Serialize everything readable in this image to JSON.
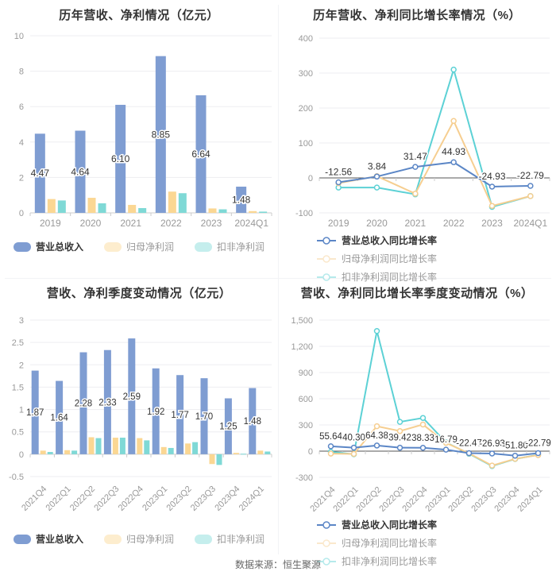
{
  "page": {
    "footer": "数据来源：恒生聚源"
  },
  "colors": {
    "bar_revenue": "#7F9DD2",
    "bar_net_profit": "#FBD793",
    "bar_non_gaap": "#7FD9D6",
    "line_revenue": "#5B86C6",
    "line_net_profit": "#F6CE90",
    "line_non_gaap": "#5CD1D5",
    "title_text": "#333333",
    "tick_text": "#999999",
    "grid": "#ededf1",
    "axis_light": "#cccccc",
    "axis_dark": "#555555",
    "footer_text": "#666666"
  },
  "chart_data": [
    {
      "type": "bar",
      "title": "历年营收、净利情况（亿元）",
      "categories": [
        "2019",
        "2020",
        "2021",
        "2022",
        "2023",
        "2024Q1"
      ],
      "ylim": [
        0,
        10
      ],
      "yticks": [
        0,
        2,
        4,
        6,
        8,
        10
      ],
      "ytick_labels": [
        "0",
        "2",
        "4",
        "6",
        "8",
        "10"
      ],
      "grid": true,
      "legend_position": "bottom-center",
      "series": [
        {
          "name": "营业总收入",
          "color": "#7F9DD2",
          "values": [
            4.47,
            4.64,
            6.1,
            8.85,
            6.64,
            1.48
          ],
          "labels": [
            "4.47",
            "4.64",
            "6.10",
            "8.85",
            "6.64",
            "1.48"
          ]
        },
        {
          "name": "归母净利润",
          "color": "#FBD793",
          "values": [
            0.78,
            0.85,
            0.45,
            1.2,
            0.25,
            0.1
          ]
        },
        {
          "name": "扣非净利润",
          "color": "#7FD9D6",
          "values": [
            0.7,
            0.54,
            0.27,
            1.11,
            0.2,
            0.07
          ]
        }
      ]
    },
    {
      "type": "line",
      "title": "历年营收、净利同比增长率情况（%）",
      "categories": [
        "2019",
        "2020",
        "2021",
        "2022",
        "2023",
        "2024Q1"
      ],
      "ylim": [
        -100,
        400
      ],
      "yticks": [
        -100,
        0,
        100,
        200,
        300,
        400
      ],
      "ytick_labels": [
        "-100",
        "0",
        "100",
        "200",
        "300",
        "400"
      ],
      "grid": true,
      "legend_position": "bottom-wrapped",
      "series": [
        {
          "name": "营业总收入同比增长率",
          "color": "#5B86C6",
          "values": [
            -12.56,
            3.84,
            31.47,
            44.93,
            -24.93,
            -22.79
          ],
          "labels": [
            "-12.56",
            "3.84",
            "31.47",
            "44.93",
            "-24.93",
            "-22.79"
          ]
        },
        {
          "name": "归母净利润同比增长率",
          "color": "#F6CE90",
          "values": [
            -15,
            5,
            -45,
            163,
            -80,
            -52
          ]
        },
        {
          "name": "扣非净利润同比增长率",
          "color": "#5CD1D5",
          "values": [
            -27.5,
            -27.5,
            -47,
            310,
            -83,
            -52
          ]
        }
      ]
    },
    {
      "type": "bar",
      "title": "营收、净利季度变动情况（亿元）",
      "categories": [
        "2021Q4",
        "2022Q1",
        "2022Q2",
        "2022Q3",
        "2022Q4",
        "2023Q1",
        "2023Q2",
        "2023Q3",
        "2023Q4",
        "2024Q1"
      ],
      "ylim": [
        -0.5,
        3
      ],
      "yticks": [
        -0.5,
        0,
        0.5,
        1,
        1.5,
        2,
        2.5,
        3
      ],
      "ytick_labels": [
        "-0.5",
        "0",
        "0.5",
        "1",
        "1.5",
        "2",
        "2.5",
        "3"
      ],
      "grid": true,
      "legend_position": "bottom-center",
      "x_label_rotation": -45,
      "series": [
        {
          "name": "营业总收入",
          "color": "#7F9DD2",
          "values": [
            1.87,
            1.64,
            2.28,
            2.33,
            2.59,
            1.92,
            1.77,
            1.7,
            1.25,
            1.48
          ],
          "labels": [
            "1.87",
            "1.64",
            "2.28",
            "2.33",
            "2.59",
            "1.92",
            "1.77",
            "1.70",
            "1.25",
            "1.48"
          ]
        },
        {
          "name": "归母净利润",
          "color": "#FBD793",
          "values": [
            0.08,
            0.09,
            0.38,
            0.37,
            0.36,
            0.16,
            0.24,
            -0.22,
            0.03,
            0.08
          ]
        },
        {
          "name": "扣非净利润",
          "color": "#7FD9D6",
          "values": [
            0.05,
            0.08,
            0.36,
            0.37,
            0.31,
            0.14,
            0.27,
            -0.24,
            0.01,
            0.06
          ]
        }
      ]
    },
    {
      "type": "line",
      "title": "营收、净利同比增长率季度变动情况（%）",
      "categories": [
        "2021Q4",
        "2022Q1",
        "2022Q2",
        "2022Q3",
        "2022Q4",
        "2023Q1",
        "2023Q2",
        "2023Q3",
        "2023Q4",
        "2024Q1"
      ],
      "ylim": [
        -300,
        1500
      ],
      "yticks": [
        -300,
        0,
        300,
        600,
        900,
        1200,
        1500
      ],
      "ytick_labels": [
        "-300",
        "0",
        "300",
        "600",
        "900",
        "1,200",
        "1,500"
      ],
      "grid": true,
      "legend_position": "bottom-wrapped",
      "x_label_rotation": -45,
      "series": [
        {
          "name": "营业总收入同比增长率",
          "color": "#5B86C6",
          "values": [
            55.64,
            40.3,
            64.38,
            39.42,
            38.33,
            16.79,
            -22.47,
            -26.93,
            -51.8,
            -22.79
          ],
          "labels": [
            "55.64",
            "40.30",
            "64.38",
            "39.42",
            "38.33",
            "16.79",
            "-22.47",
            "-26.93",
            "-51.80",
            "-22.79"
          ]
        },
        {
          "name": "归母净利润同比增长率",
          "color": "#F6CE90",
          "values": [
            -28,
            -32,
            285,
            230,
            305,
            95,
            -25,
            -165,
            -88,
            -45
          ]
        },
        {
          "name": "扣非净利润同比增长率",
          "color": "#5CD1D5",
          "values": [
            -8,
            -35,
            1375,
            335,
            380,
            100,
            -30,
            -170,
            -90,
            -42
          ]
        }
      ]
    }
  ]
}
